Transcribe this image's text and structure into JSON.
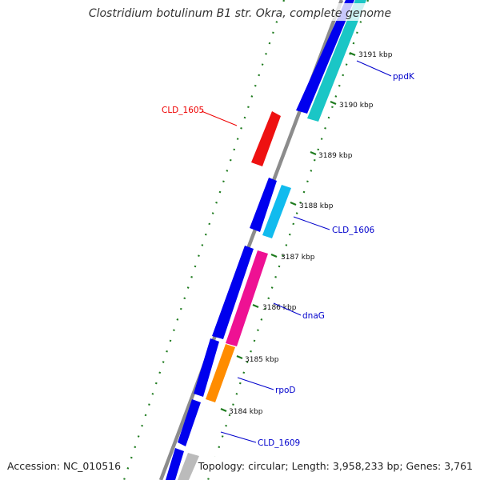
{
  "title": "Clostridium botulinum B1 str. Okra, complete genome",
  "footer": {
    "accession": "Accession: NC_010516",
    "summary": "Topology: circular; Length: 3,958,233 bp; Genes: 3,761"
  },
  "ticks": [
    {
      "label": "3191 kbp"
    },
    {
      "label": "3190 kbp"
    },
    {
      "label": "3189 kbp"
    },
    {
      "label": "3188 kbp"
    },
    {
      "label": "3187 kbp"
    },
    {
      "label": "3186 kbp"
    },
    {
      "label": "3185 kbp"
    },
    {
      "label": "3184 kbp"
    }
  ],
  "gene_labels": [
    {
      "name": "ppdK",
      "color": "#0000cc"
    },
    {
      "name": "CLD_1605",
      "color": "#ee0000"
    },
    {
      "name": "CLD_1606",
      "color": "#0000cc"
    },
    {
      "name": "dnaG",
      "color": "#0000cc"
    },
    {
      "name": "rpoD",
      "color": "#0000cc"
    },
    {
      "name": "CLD_1609",
      "color": "#0000cc"
    }
  ],
  "colors": {
    "backbone": "#8c8c8c",
    "cds_forward": "#0000ee",
    "gc_dots": "#1e7b1e",
    "ppdK": "#1ac6c6",
    "CLD_1605": "#ee1111",
    "CLD_1606": "#11bbee",
    "dnaG": "#ee1193",
    "rpoD": "#ff8c00",
    "CLD_1609": "#bbbbbb"
  }
}
